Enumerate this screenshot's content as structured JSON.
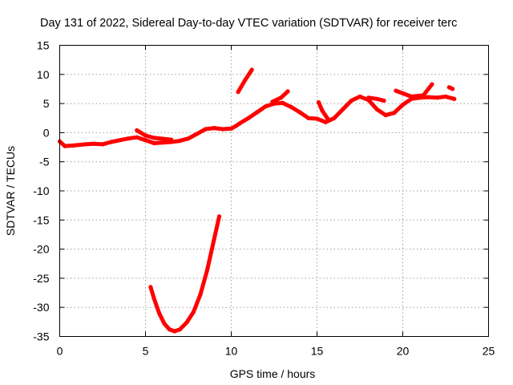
{
  "chart_data": {
    "type": "line",
    "title": "Day 131 of 2022, Sidereal Day-to-day VTEC variation (SDTVAR) for receiver terc",
    "xlabel": "GPS time / hours",
    "ylabel": "SDTVAR / TECUs",
    "xlim": [
      0,
      25
    ],
    "ylim": [
      -35,
      15
    ],
    "xticks": [
      0,
      5,
      10,
      15,
      20,
      25
    ],
    "yticks": [
      15,
      10,
      5,
      0,
      -5,
      -10,
      -15,
      -20,
      -25,
      -30,
      -35
    ],
    "grid": true,
    "legend": "none",
    "series": [
      {
        "name": "main-trace",
        "color": "#ff0000",
        "points": [
          [
            0.0,
            -1.5
          ],
          [
            0.3,
            -2.3
          ],
          [
            0.8,
            -2.2
          ],
          [
            1.5,
            -2.0
          ],
          [
            2.0,
            -1.9
          ],
          [
            2.5,
            -2.0
          ],
          [
            3.0,
            -1.6
          ],
          [
            3.5,
            -1.3
          ],
          [
            4.0,
            -1.0
          ],
          [
            4.5,
            -0.8
          ],
          [
            5.0,
            -1.3
          ],
          [
            5.5,
            -1.8
          ],
          [
            6.0,
            -1.7
          ],
          [
            6.5,
            -1.6
          ],
          [
            7.0,
            -1.4
          ],
          [
            7.5,
            -1.0
          ],
          [
            8.0,
            -0.2
          ],
          [
            8.5,
            0.6
          ],
          [
            9.0,
            0.8
          ],
          [
            9.5,
            0.6
          ],
          [
            10.0,
            0.7
          ],
          [
            10.3,
            1.2
          ],
          [
            10.5,
            1.6
          ],
          [
            11.0,
            2.5
          ],
          [
            11.5,
            3.5
          ],
          [
            12.0,
            4.5
          ],
          [
            12.5,
            5.0
          ],
          [
            13.0,
            5.1
          ],
          [
            13.5,
            4.4
          ],
          [
            14.0,
            3.5
          ],
          [
            14.5,
            2.5
          ],
          [
            15.0,
            2.4
          ],
          [
            15.5,
            1.8
          ],
          [
            16.0,
            2.5
          ],
          [
            16.5,
            4.0
          ],
          [
            17.0,
            5.5
          ],
          [
            17.5,
            6.2
          ],
          [
            18.0,
            5.6
          ],
          [
            18.5,
            4.0
          ],
          [
            19.0,
            3.0
          ],
          [
            19.5,
            3.4
          ],
          [
            20.0,
            4.8
          ],
          [
            20.5,
            5.8
          ],
          [
            21.0,
            6.0
          ],
          [
            21.5,
            6.1
          ],
          [
            22.0,
            6.0
          ],
          [
            22.5,
            6.2
          ],
          [
            23.0,
            5.8
          ]
        ]
      },
      {
        "name": "main-trace-offset",
        "color": "#ff0000",
        "points": [
          [
            4.5,
            0.4
          ],
          [
            5.0,
            -0.5
          ],
          [
            5.5,
            -0.9
          ],
          [
            6.5,
            -1.2
          ]
        ]
      },
      {
        "name": "short-segment-11h",
        "color": "#ff0000",
        "points": [
          [
            10.4,
            7.0
          ],
          [
            10.8,
            9.0
          ],
          [
            11.2,
            10.8
          ]
        ]
      },
      {
        "name": "segment-13h",
        "color": "#ff0000",
        "points": [
          [
            12.4,
            5.3
          ],
          [
            12.9,
            6.0
          ],
          [
            13.3,
            7.1
          ]
        ]
      },
      {
        "name": "segment-15h",
        "color": "#ff0000",
        "points": [
          [
            15.1,
            5.2
          ],
          [
            15.3,
            3.8
          ],
          [
            15.6,
            2.5
          ]
        ]
      },
      {
        "name": "segment-19h",
        "color": "#ff0000",
        "points": [
          [
            18.0,
            6.0
          ],
          [
            18.5,
            5.8
          ],
          [
            18.9,
            5.5
          ]
        ]
      },
      {
        "name": "segment-20h",
        "color": "#ff0000",
        "points": [
          [
            19.6,
            7.2
          ],
          [
            20.5,
            6.2
          ],
          [
            21.2,
            6.4
          ],
          [
            21.7,
            8.3
          ]
        ]
      },
      {
        "name": "segment-end",
        "color": "#ff0000",
        "points": [
          [
            22.7,
            7.8
          ],
          [
            22.9,
            7.5
          ]
        ]
      },
      {
        "name": "dip-arc",
        "color": "#ff0000",
        "points": [
          [
            5.3,
            -26.5
          ],
          [
            5.5,
            -28.5
          ],
          [
            5.8,
            -31.0
          ],
          [
            6.1,
            -32.8
          ],
          [
            6.4,
            -33.8
          ],
          [
            6.7,
            -34.1
          ],
          [
            7.0,
            -33.8
          ],
          [
            7.4,
            -32.6
          ],
          [
            7.8,
            -30.8
          ],
          [
            8.2,
            -27.8
          ],
          [
            8.6,
            -23.6
          ],
          [
            9.0,
            -18.3
          ],
          [
            9.3,
            -14.4
          ]
        ]
      }
    ]
  }
}
